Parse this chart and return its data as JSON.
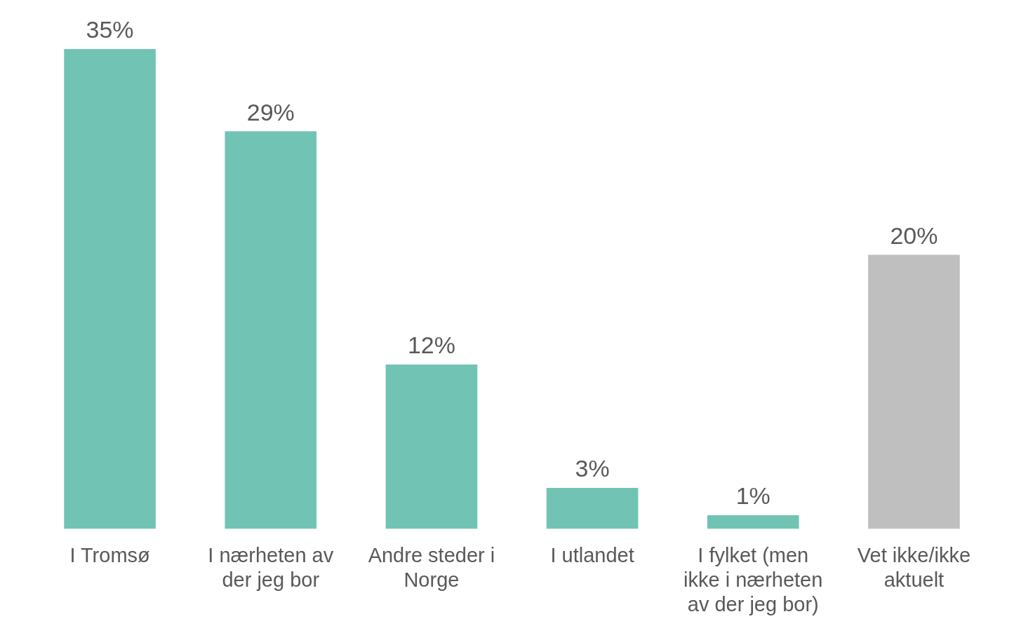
{
  "chart_data": {
    "type": "bar",
    "categories": [
      "I Tromsø",
      "I nærheten av der jeg bor",
      "Andre steder i Norge",
      "I utlandet",
      "I fylket (men ikke i nærheten av der jeg bor)",
      "Vet ikke/ikke aktuelt"
    ],
    "values": [
      35,
      29,
      12,
      3,
      1,
      20
    ],
    "colors": [
      "#71c4b4",
      "#71c4b4",
      "#71c4b4",
      "#71c4b4",
      "#71c4b4",
      "#bfbfbf"
    ],
    "value_labels": [
      "35%",
      "29%",
      "12%",
      "3%",
      "1%",
      "20%"
    ],
    "grid": false,
    "legend": false
  }
}
